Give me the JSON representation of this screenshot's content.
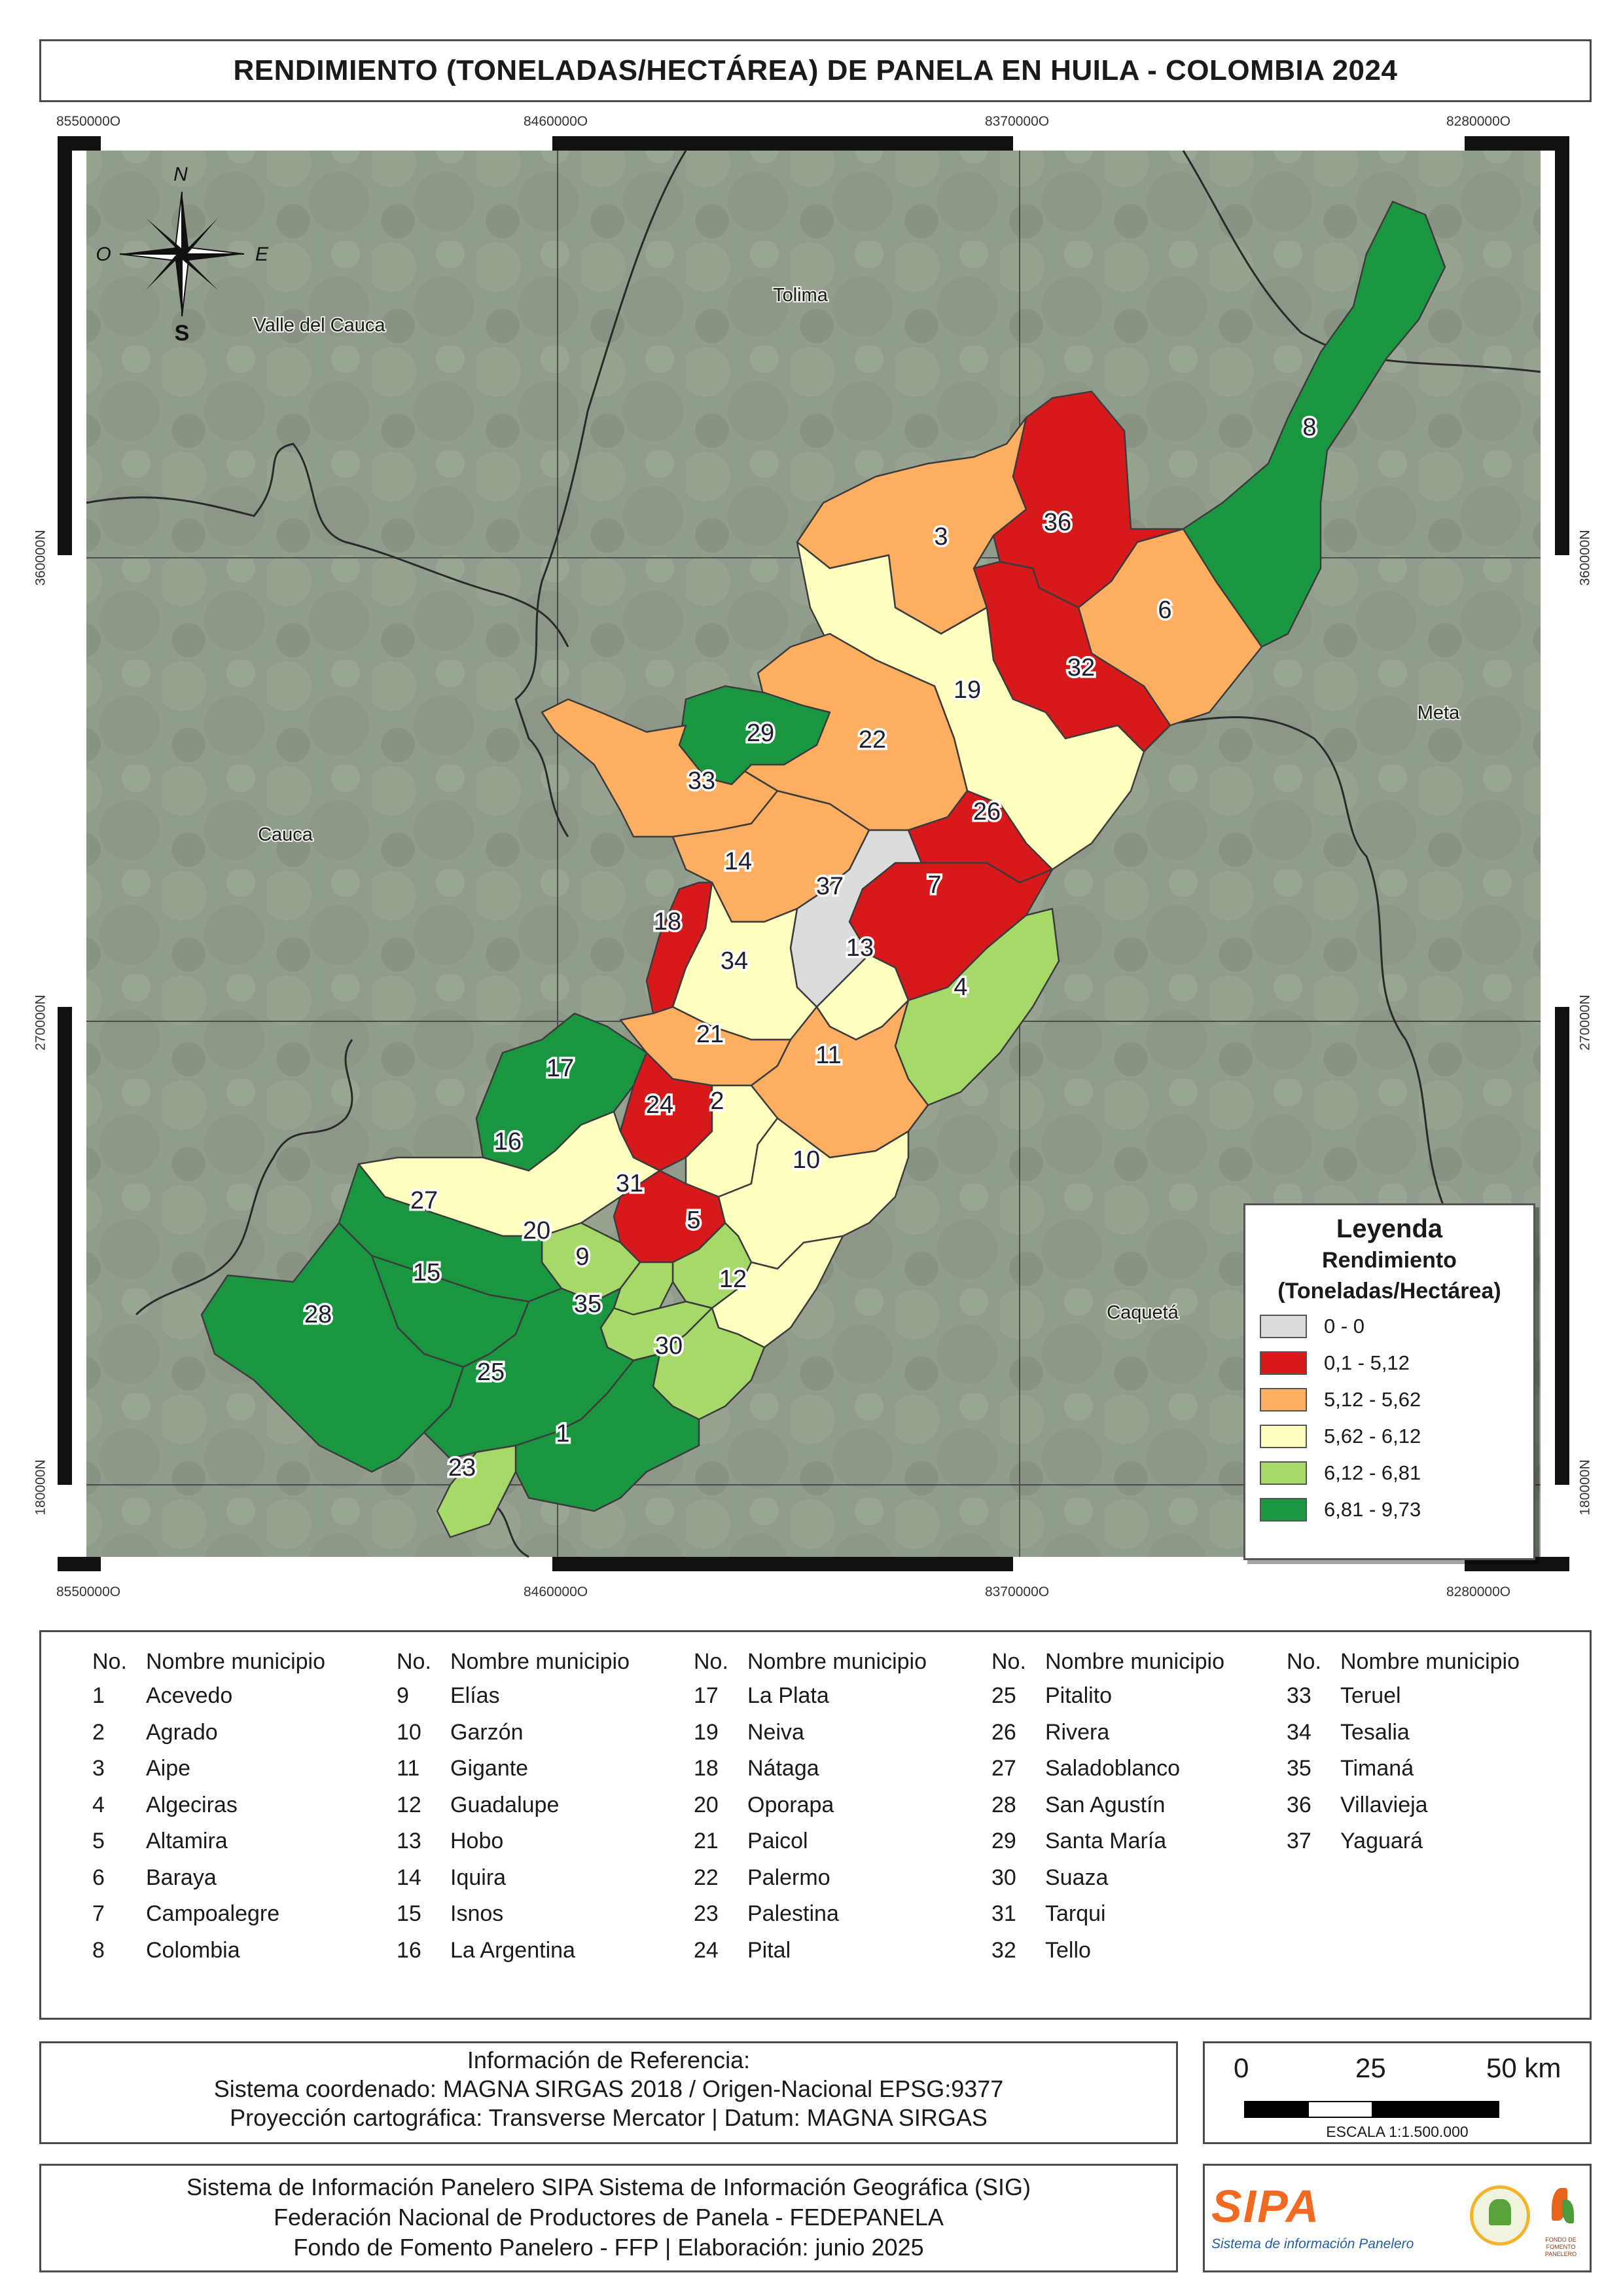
{
  "title": "RENDIMIENTO (TONELADAS/HECTÁREA) DE PANELA EN HUILA - COLOMBIA 2024",
  "map": {
    "coords_top": [
      "8550000O",
      "8460000O",
      "8370000O",
      "8280000O"
    ],
    "coords_bottom": [
      "8550000O",
      "8460000O",
      "8370000O",
      "8280000O"
    ],
    "coords_left": [
      "360000N",
      "270000N",
      "180000N"
    ],
    "coords_right": [
      "360000N",
      "270000N",
      "180000N"
    ],
    "compass": {
      "n": "N",
      "s": "S",
      "e": "E",
      "o": "O"
    },
    "departments": [
      "Valle del Cauca",
      "Tolima",
      "Meta",
      "Cauca",
      "Caquetá"
    ],
    "municipality_numbers": [
      "1",
      "2",
      "3",
      "4",
      "5",
      "6",
      "7",
      "8",
      "9",
      "10",
      "11",
      "12",
      "13",
      "14",
      "15",
      "16",
      "17",
      "18",
      "19",
      "20",
      "21",
      "22",
      "23",
      "24",
      "25",
      "26",
      "27",
      "28",
      "29",
      "30",
      "31",
      "32",
      "33",
      "34",
      "35",
      "36",
      "37"
    ]
  },
  "legend": {
    "title": "Leyenda",
    "subtitle1": "Rendimiento",
    "subtitle2": "(Toneladas/Hectárea)",
    "classes": [
      {
        "label": "0 - 0",
        "color": "#dcdcdc"
      },
      {
        "label": "0,1 - 5,12",
        "color": "#d7191c"
      },
      {
        "label": "5,12 - 5,62",
        "color": "#fdae61"
      },
      {
        "label": "5,62 - 6,12",
        "color": "#ffffc0"
      },
      {
        "label": "6,12 - 6,81",
        "color": "#a6d96a"
      },
      {
        "label": "6,81 - 9,73",
        "color": "#1a9641"
      }
    ]
  },
  "table": {
    "head_no": "No.",
    "head_name": "Nombre municipio",
    "columns": [
      [
        [
          "1",
          "Acevedo"
        ],
        [
          "2",
          "Agrado"
        ],
        [
          "3",
          "Aipe"
        ],
        [
          "4",
          "Algeciras"
        ],
        [
          "5",
          "Altamira"
        ],
        [
          "6",
          "Baraya"
        ],
        [
          "7",
          "Campoalegre"
        ],
        [
          "8",
          "Colombia"
        ]
      ],
      [
        [
          "9",
          "Elías"
        ],
        [
          "10",
          "Garzón"
        ],
        [
          "11",
          "Gigante"
        ],
        [
          "12",
          "Guadalupe"
        ],
        [
          "13",
          "Hobo"
        ],
        [
          "14",
          "Iquira"
        ],
        [
          "15",
          "Isnos"
        ],
        [
          "16",
          "La Argentina"
        ]
      ],
      [
        [
          "17",
          "La Plata"
        ],
        [
          "19",
          "Neiva"
        ],
        [
          "18",
          "Nátaga"
        ],
        [
          "20",
          "Oporapa"
        ],
        [
          "21",
          "Paicol"
        ],
        [
          "22",
          "Palermo"
        ],
        [
          "23",
          "Palestina"
        ],
        [
          "24",
          "Pital"
        ]
      ],
      [
        [
          "25",
          "Pitalito"
        ],
        [
          "26",
          "Rivera"
        ],
        [
          "27",
          "Saladoblanco"
        ],
        [
          "28",
          "San Agustín"
        ],
        [
          "29",
          "Santa María"
        ],
        [
          "30",
          "Suaza"
        ],
        [
          "31",
          "Tarqui"
        ],
        [
          "32",
          "Tello"
        ]
      ],
      [
        [
          "33",
          "Teruel"
        ],
        [
          "34",
          "Tesalia"
        ],
        [
          "35",
          "Timaná"
        ],
        [
          "36",
          "Villavieja"
        ],
        [
          "37",
          "Yaguará"
        ]
      ]
    ]
  },
  "reference": {
    "line1": "Información de Referencia:",
    "line2": "Sistema coordenado: MAGNA SIRGAS 2018 / Origen-Nacional EPSG:9377",
    "line3": "Proyección cartográfica: Transverse Mercator | Datum: MAGNA SIRGAS"
  },
  "scale": {
    "t0": "0",
    "t1": "25",
    "t2": "50 km",
    "caption": "ESCALA 1:1.500.000"
  },
  "credits": {
    "line1": "Sistema de Información Panelero SIPA  Sistema de Información Geográfica (SIG)",
    "line2": "Federación Nacional de Productores de Panela - FEDEPANELA",
    "line3": "Fondo de Fomento Panelero - FFP |  Elaboración: junio 2025"
  },
  "logos": {
    "sipa": "SIPA",
    "sipa_sub": "Sistema de información Panelero",
    "seal": "FEDEPANELA",
    "ffp": "FONDO DE FOMENTO PANELERO"
  }
}
